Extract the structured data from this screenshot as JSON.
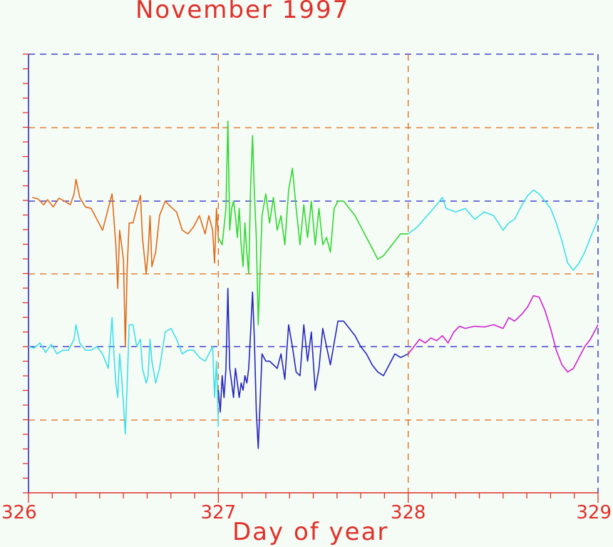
{
  "title": "November 1997",
  "colors": {
    "background": "#f5fbf5",
    "axis_frame_left_bottom": "#e0302a",
    "axis_frame_top_right": "#2020c8",
    "grid_orange": "#e06a18",
    "grid_blue": "#2020c8",
    "text": "#e0302a"
  },
  "chart_data": {
    "type": "line",
    "title": "November 1997",
    "xlabel": "Day of year",
    "ylabel": "",
    "xlim": [
      326,
      329
    ],
    "x_ticks": [
      "326",
      "327",
      "328",
      "329"
    ],
    "y_ticks": [],
    "grid": true,
    "legend": "none",
    "series": [
      {
        "color": "#e06a18",
        "panel": "upper",
        "x": [
          326.02,
          326.05,
          326.08,
          326.1,
          326.13,
          326.16,
          326.19,
          326.22,
          326.24,
          326.25,
          326.27,
          326.3,
          326.33,
          326.36,
          326.39,
          326.42,
          326.44,
          326.46,
          326.47,
          326.48,
          326.5,
          326.51,
          326.52,
          326.53,
          326.55,
          326.57,
          326.59,
          326.6,
          326.62,
          326.63,
          326.64,
          326.65,
          326.67,
          326.69,
          326.72,
          326.75,
          326.78,
          326.81,
          326.84,
          326.87,
          326.9,
          326.93,
          326.95,
          326.97,
          326.98,
          326.99,
          327.0
        ],
        "y": [
          0.05,
          0.03,
          -0.05,
          0.02,
          -0.08,
          0.04,
          0.0,
          -0.05,
          0.1,
          0.3,
          0.05,
          -0.08,
          -0.1,
          -0.25,
          -0.4,
          -0.1,
          0.1,
          -0.6,
          -1.2,
          -0.4,
          -0.8,
          -2.0,
          -0.9,
          -0.3,
          -0.3,
          -0.1,
          0.08,
          -0.5,
          -1.0,
          -0.7,
          -0.2,
          -0.9,
          -0.7,
          -0.2,
          0.0,
          -0.08,
          -0.15,
          -0.4,
          -0.45,
          -0.35,
          -0.2,
          -0.45,
          -0.2,
          -0.4,
          -0.85,
          -0.1,
          -0.5
        ]
      },
      {
        "color": "#30d830",
        "panel": "upper",
        "x": [
          327.0,
          327.02,
          327.04,
          327.05,
          327.06,
          327.07,
          327.08,
          327.09,
          327.1,
          327.11,
          327.12,
          327.13,
          327.14,
          327.15,
          327.16,
          327.17,
          327.18,
          327.19,
          327.2,
          327.21,
          327.23,
          327.25,
          327.27,
          327.29,
          327.31,
          327.33,
          327.35,
          327.37,
          327.39,
          327.41,
          327.43,
          327.45,
          327.47,
          327.49,
          327.51,
          327.53,
          327.55,
          327.57,
          327.59,
          327.61,
          327.63,
          327.66,
          327.69,
          327.72,
          327.75,
          327.78,
          327.81,
          327.84,
          327.87,
          327.9,
          327.93,
          327.96,
          328.0
        ],
        "y": [
          -0.5,
          -0.6,
          -0.1,
          1.1,
          -0.4,
          -0.1,
          0.0,
          -0.2,
          -0.5,
          -0.1,
          -0.6,
          -0.9,
          -0.3,
          -0.7,
          -1.0,
          0.2,
          0.9,
          0.1,
          -0.5,
          -1.7,
          -0.2,
          0.1,
          -0.3,
          0.05,
          -0.4,
          -0.2,
          -0.6,
          0.15,
          0.45,
          -0.1,
          -0.6,
          -0.05,
          -0.5,
          0.0,
          -0.6,
          -0.1,
          -0.6,
          -0.5,
          -0.7,
          -0.1,
          0.0,
          0.0,
          -0.1,
          -0.2,
          -0.35,
          -0.5,
          -0.65,
          -0.8,
          -0.75,
          -0.65,
          -0.55,
          -0.45,
          -0.45
        ]
      },
      {
        "color": "#3de0e8",
        "panel": "upper",
        "x": [
          328.0,
          328.05,
          328.1,
          328.15,
          328.18,
          328.2,
          328.25,
          328.3,
          328.35,
          328.4,
          328.45,
          328.5,
          328.53,
          328.56,
          328.6,
          328.63,
          328.66,
          328.69,
          328.72,
          328.75,
          328.78,
          328.81,
          328.84,
          328.87,
          328.9,
          328.93,
          328.96,
          329.0
        ],
        "y": [
          -0.45,
          -0.35,
          -0.2,
          -0.05,
          0.05,
          -0.1,
          -0.15,
          -0.1,
          -0.25,
          -0.15,
          -0.2,
          -0.4,
          -0.3,
          -0.25,
          -0.05,
          0.08,
          0.15,
          0.1,
          0.0,
          -0.1,
          -0.3,
          -0.55,
          -0.85,
          -0.95,
          -0.85,
          -0.7,
          -0.5,
          -0.25
        ]
      },
      {
        "color": "#3de0e8",
        "panel": "lower",
        "x": [
          326.0,
          326.03,
          326.06,
          326.09,
          326.12,
          326.15,
          326.18,
          326.21,
          326.24,
          326.25,
          326.27,
          326.3,
          326.33,
          326.36,
          326.39,
          326.42,
          326.44,
          326.45,
          326.46,
          326.47,
          326.48,
          326.49,
          326.5,
          326.51,
          326.52,
          326.53,
          326.55,
          326.57,
          326.59,
          326.6,
          326.62,
          326.63,
          326.64,
          326.65,
          326.67,
          326.69,
          326.72,
          326.75,
          326.78,
          326.81,
          326.84,
          326.87,
          326.9,
          326.93,
          326.95,
          326.97,
          326.98,
          326.99,
          327.0
        ],
        "y": [
          0.0,
          -0.02,
          0.05,
          -0.08,
          0.03,
          -0.1,
          -0.05,
          -0.05,
          0.1,
          0.3,
          0.05,
          -0.05,
          -0.05,
          0.0,
          -0.1,
          -0.3,
          0.4,
          -0.1,
          -0.5,
          -0.7,
          -0.1,
          -0.4,
          -0.8,
          -1.2,
          -0.5,
          0.3,
          0.3,
          0.0,
          0.1,
          -0.3,
          -0.5,
          -0.4,
          0.1,
          -0.2,
          -0.5,
          -0.3,
          0.2,
          0.25,
          0.1,
          -0.1,
          -0.05,
          -0.05,
          -0.15,
          -0.2,
          -0.1,
          0.0,
          -0.7,
          -0.2,
          -1.1
        ]
      },
      {
        "color": "#2424c0",
        "panel": "lower",
        "x": [
          327.0,
          327.01,
          327.02,
          327.03,
          327.04,
          327.05,
          327.06,
          327.07,
          327.08,
          327.09,
          327.1,
          327.11,
          327.12,
          327.13,
          327.14,
          327.15,
          327.16,
          327.17,
          327.18,
          327.19,
          327.2,
          327.21,
          327.23,
          327.25,
          327.27,
          327.29,
          327.31,
          327.33,
          327.35,
          327.37,
          327.39,
          327.41,
          327.43,
          327.45,
          327.47,
          327.49,
          327.51,
          327.53,
          327.55,
          327.57,
          327.59,
          327.61,
          327.63,
          327.66,
          327.69,
          327.72,
          327.75,
          327.78,
          327.81,
          327.84,
          327.87,
          327.9,
          327.93,
          327.96,
          328.0
        ],
        "y": [
          -0.6,
          -0.9,
          -0.4,
          -0.7,
          -0.3,
          0.8,
          -0.3,
          -0.5,
          -0.7,
          -0.3,
          -0.5,
          -0.7,
          -0.5,
          -0.6,
          -0.4,
          -0.5,
          -0.3,
          0.2,
          0.75,
          0.1,
          -0.9,
          -1.4,
          -0.1,
          -0.2,
          -0.2,
          -0.25,
          -0.3,
          -0.1,
          -0.45,
          0.3,
          0.0,
          -0.35,
          -0.4,
          0.3,
          -0.2,
          0.2,
          -0.6,
          -0.3,
          0.25,
          0.0,
          -0.25,
          0.05,
          0.35,
          0.35,
          0.25,
          0.15,
          0.0,
          -0.1,
          -0.25,
          -0.35,
          -0.4,
          -0.25,
          -0.1,
          -0.15,
          -0.1
        ]
      },
      {
        "color": "#d020d0",
        "panel": "lower",
        "x": [
          328.0,
          328.03,
          328.06,
          328.09,
          328.12,
          328.15,
          328.18,
          328.21,
          328.24,
          328.27,
          328.3,
          328.35,
          328.4,
          328.45,
          328.5,
          328.53,
          328.56,
          328.6,
          328.63,
          328.66,
          328.69,
          328.72,
          328.75,
          328.78,
          328.81,
          328.84,
          328.87,
          328.9,
          328.93,
          328.96,
          329.0
        ],
        "y": [
          -0.1,
          0.0,
          0.1,
          0.05,
          0.12,
          0.08,
          0.15,
          0.05,
          0.2,
          0.28,
          0.25,
          0.28,
          0.27,
          0.3,
          0.25,
          0.4,
          0.35,
          0.45,
          0.55,
          0.7,
          0.68,
          0.5,
          0.25,
          -0.05,
          -0.25,
          -0.35,
          -0.3,
          -0.15,
          0.0,
          0.1,
          0.3
        ]
      }
    ]
  }
}
